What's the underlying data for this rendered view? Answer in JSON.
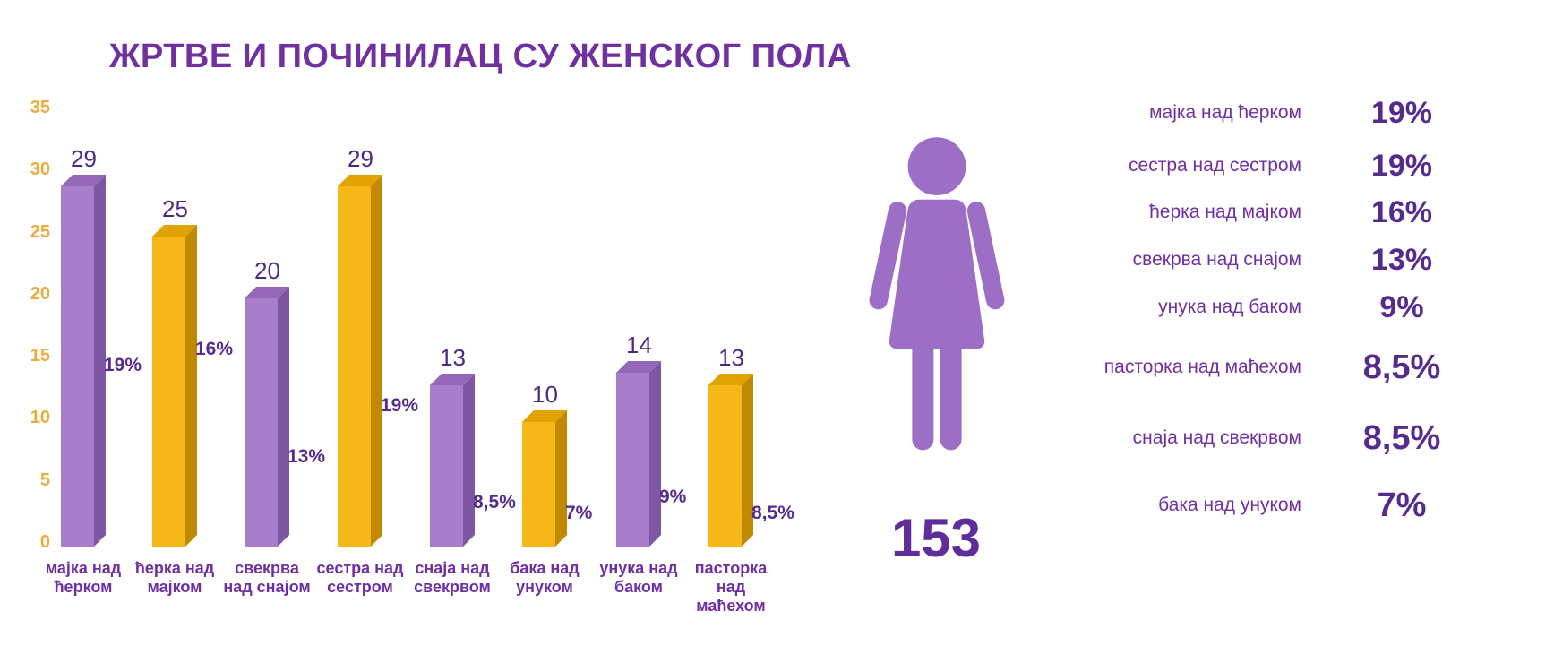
{
  "title": "ЖРТВЕ И ПОЧИНИЛАЦ СУ ЖЕНСКОГ ПОЛА",
  "colors": {
    "title": "#7030a0",
    "axis_ticks": "#ecac3c",
    "bar_purple_front": "#a77cca",
    "bar_purple_top": "#9467b8",
    "bar_purple_side": "#7e57a2",
    "bar_yellow_front": "#f6b719",
    "bar_yellow_top": "#e2a300",
    "bar_yellow_side": "#c08900",
    "value_label": "#4b2a7f",
    "pct_label": "#562b8e",
    "category_label": "#6e2fa4",
    "figure": "#9c6ec6",
    "count": "#5f2d99",
    "list_label": "#7030a0",
    "list_value": "#562b8e"
  },
  "chart_data": {
    "type": "bar",
    "title": "ЖРТВЕ И ПОЧИНИЛАЦ СУ ЖЕНСКОГ ПОЛА",
    "categories": [
      "мајка над ћерком",
      "ћерка над мајком",
      "свекрва над снајом",
      "сестра над сестром",
      "снаја над свекрвом",
      "бака над унуком",
      "унука над баком",
      "пасторка над маћехом"
    ],
    "category_lines": [
      [
        "мајка над",
        "ћерком"
      ],
      [
        "ћерка над",
        "мајком"
      ],
      [
        "свекрва",
        "над снајом"
      ],
      [
        "сестра над",
        "сестром"
      ],
      [
        "снаја над",
        "свекрвом"
      ],
      [
        "бака над",
        "унуком"
      ],
      [
        "унука над",
        "баком"
      ],
      [
        "пасторка",
        "над",
        "маћехом"
      ]
    ],
    "values": [
      29,
      25,
      20,
      29,
      13,
      10,
      14,
      13
    ],
    "percent_labels": [
      "19%",
      "16%",
      "13%",
      "19%",
      "8,5%",
      "7%",
      "9%",
      "8,5%"
    ],
    "bar_palette": [
      "purple",
      "yellow",
      "purple",
      "yellow",
      "purple",
      "yellow",
      "purple",
      "yellow"
    ],
    "y_ticks": [
      0,
      5,
      10,
      15,
      20,
      25,
      30,
      35
    ],
    "ylim": [
      0,
      35
    ],
    "grid": false,
    "legend": "none",
    "bar_style": "3d"
  },
  "figure": {
    "icon": "woman-icon",
    "count": "153"
  },
  "summary": {
    "items": [
      {
        "label": "мајка над ћерком",
        "value": "19%",
        "large": false
      },
      {
        "label": "сестра над сестром",
        "value": "19%",
        "large": false
      },
      {
        "label": "ћерка над мајком",
        "value": "16%",
        "large": false
      },
      {
        "label": "свекрва над снајом",
        "value": "13%",
        "large": false
      },
      {
        "label": "унука над баком",
        "value": "9%",
        "large": false
      },
      {
        "label": "пасторка над маћехом",
        "value": "8,5%",
        "large": true
      },
      {
        "label": "снаја над свекрвом",
        "value": "8,5%",
        "large": true
      },
      {
        "label": "бака над унуком",
        "value": "7%",
        "large": true
      }
    ]
  }
}
